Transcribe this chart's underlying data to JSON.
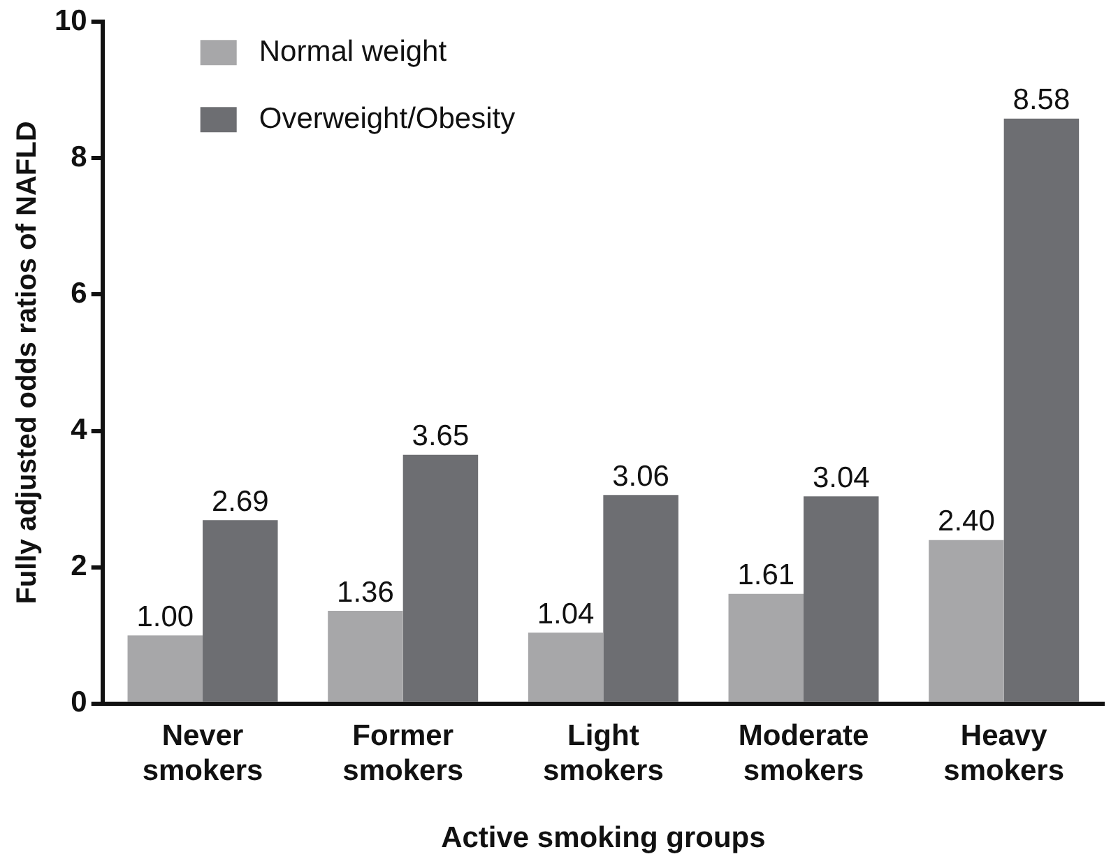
{
  "chart_data": {
    "type": "bar",
    "xlabel": "Active smoking groups",
    "ylabel": "Fully adjusted odds ratios of NAFLD",
    "categories": [
      "Never smokers",
      "Former smokers",
      "Light smokers",
      "Moderate smokers",
      "Heavy smokers"
    ],
    "series": [
      {
        "name": "Normal weight",
        "color": "#a7a7a9",
        "values": [
          1.0,
          1.36,
          1.04,
          1.61,
          2.4
        ],
        "value_labels": [
          "1.00",
          "1.36",
          "1.04",
          "1.61",
          "2.40"
        ]
      },
      {
        "name": "Overweight/Obesity",
        "color": "#6d6e72",
        "values": [
          2.69,
          3.65,
          3.06,
          3.04,
          8.58
        ],
        "value_labels": [
          "2.69",
          "3.65",
          "3.06",
          "3.04",
          "8.58"
        ]
      }
    ],
    "ylim": [
      0,
      10
    ],
    "yticks": [
      0,
      2,
      4,
      6,
      8,
      10
    ],
    "legend": "top left",
    "grid": false
  }
}
